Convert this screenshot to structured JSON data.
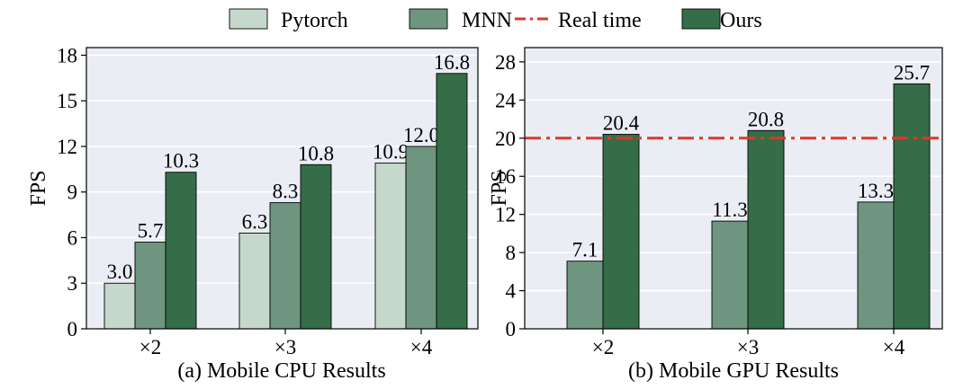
{
  "colors": {
    "pytorch": "#c6d8cc",
    "mnn": "#6e9580",
    "ours": "#356d48",
    "realtime": "#d83a2c",
    "plot_bg": "#eaedf4"
  },
  "legend": {
    "placement": "top-center",
    "entries": [
      {
        "label": "Pytorch",
        "kind": "patch",
        "color_key": "pytorch"
      },
      {
        "label": "MNN",
        "kind": "patch",
        "color_key": "mnn"
      },
      {
        "label": "Real time",
        "kind": "dashdot-line",
        "color_key": "realtime"
      },
      {
        "label": "Ours",
        "kind": "patch",
        "color_key": "ours"
      }
    ]
  },
  "chart_data": [
    {
      "type": "bar",
      "title": "(a) Mobile CPU Results",
      "xlabel": "",
      "ylabel": "FPS",
      "categories": [
        "×2",
        "×3",
        "×4"
      ],
      "ylim": [
        0,
        18.5
      ],
      "yticks": [
        0,
        3,
        6,
        9,
        12,
        15,
        18
      ],
      "grid": true,
      "series": [
        {
          "name": "Pytorch",
          "color_key": "pytorch",
          "values": [
            3.0,
            6.3,
            10.9
          ],
          "labels": [
            "3.0",
            "6.3",
            "10.9"
          ]
        },
        {
          "name": "MNN",
          "color_key": "mnn",
          "values": [
            5.7,
            8.3,
            12.0
          ],
          "labels": [
            "5.7",
            "8.3",
            "12.0"
          ]
        },
        {
          "name": "Ours",
          "color_key": "ours",
          "values": [
            10.3,
            10.8,
            16.8
          ],
          "labels": [
            "10.3",
            "10.8",
            "16.8"
          ]
        }
      ]
    },
    {
      "type": "bar",
      "title": "(b) Mobile GPU Results",
      "xlabel": "",
      "ylabel": "FPS",
      "categories": [
        "×2",
        "×3",
        "×4"
      ],
      "ylim": [
        0,
        29.5
      ],
      "yticks": [
        0,
        4,
        8,
        12,
        16,
        20,
        24,
        28
      ],
      "grid": true,
      "reference_line": {
        "name": "Real time",
        "value": 20,
        "color_key": "realtime"
      },
      "series": [
        {
          "name": "MNN",
          "color_key": "mnn",
          "values": [
            7.1,
            11.3,
            13.3
          ],
          "labels": [
            "7.1",
            "11.3",
            "13.3"
          ]
        },
        {
          "name": "Ours",
          "color_key": "ours",
          "values": [
            20.4,
            20.8,
            25.7
          ],
          "labels": [
            "20.4",
            "20.8",
            "25.7"
          ]
        }
      ]
    }
  ]
}
